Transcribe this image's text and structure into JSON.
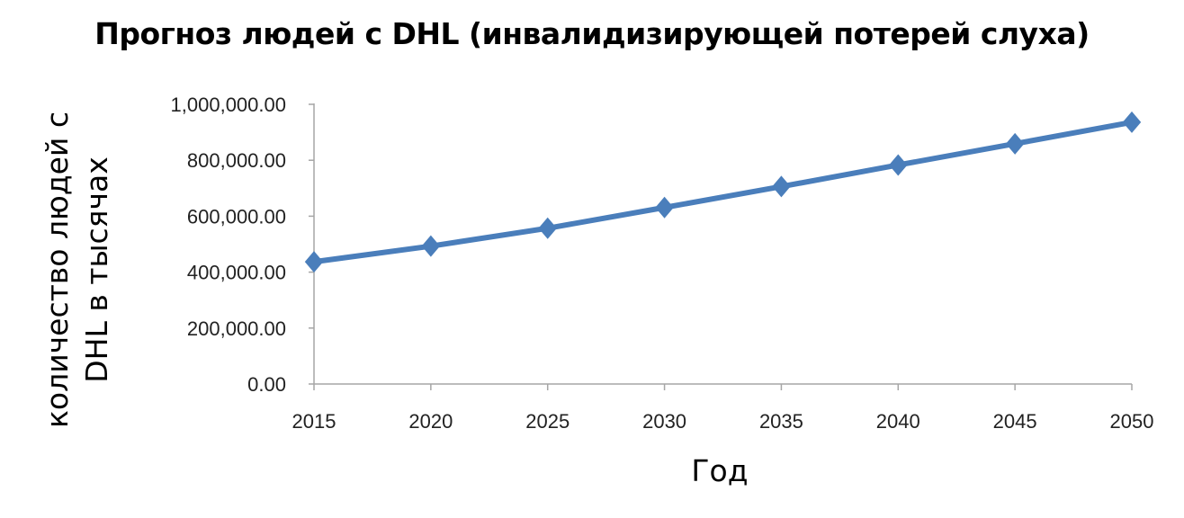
{
  "chart_data": {
    "type": "line",
    "title": "Прогноз людей с DHL (инвалидизирующей потерей слуха)",
    "xlabel": "Год",
    "ylabel_lines": [
      "количество людей с",
      "DHL в тысячах"
    ],
    "categories": [
      "2015",
      "2020",
      "2025",
      "2030",
      "2035",
      "2040",
      "2045",
      "2050"
    ],
    "series": [
      {
        "values": [
          437000,
          493000,
          557000,
          631000,
          706000,
          783000,
          859000,
          936000
        ],
        "color": "#4A7EBB",
        "marker": "diamond"
      }
    ],
    "yticks": [
      "0.00",
      "200,000.00",
      "400,000.00",
      "600,000.00",
      "800,000.00",
      "1,000,000.00"
    ],
    "ylim": [
      0,
      1000000
    ],
    "grid": false,
    "legend": "none"
  }
}
